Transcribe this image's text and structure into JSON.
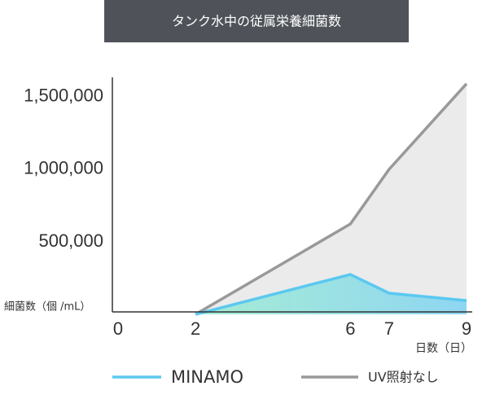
{
  "chart_data": {
    "type": "line",
    "title": "タンク水中の従属栄養細菌数",
    "y_label": "細菌数（個 /mL）",
    "x_label": "日数（日）",
    "x": [
      2,
      6,
      7,
      9
    ],
    "series": [
      {
        "name": "MINAMO",
        "color": "#5bc8f0",
        "values": [
          0,
          275000,
          146000,
          95000
        ]
      },
      {
        "name": "UV照射なし",
        "color": "#999999",
        "values": [
          0,
          623000,
          1000000,
          1590000
        ]
      }
    ],
    "xlim": [
      0,
      9
    ],
    "xticks": [
      0,
      2,
      6,
      7,
      9
    ],
    "ylim": [
      0,
      1600000
    ],
    "yticks": [
      {
        "value": 500000,
        "label": "500,000"
      },
      {
        "value": 1000000,
        "label": "1,000,000"
      },
      {
        "value": 1500000,
        "label": "1,500,000"
      }
    ],
    "grid": false
  }
}
